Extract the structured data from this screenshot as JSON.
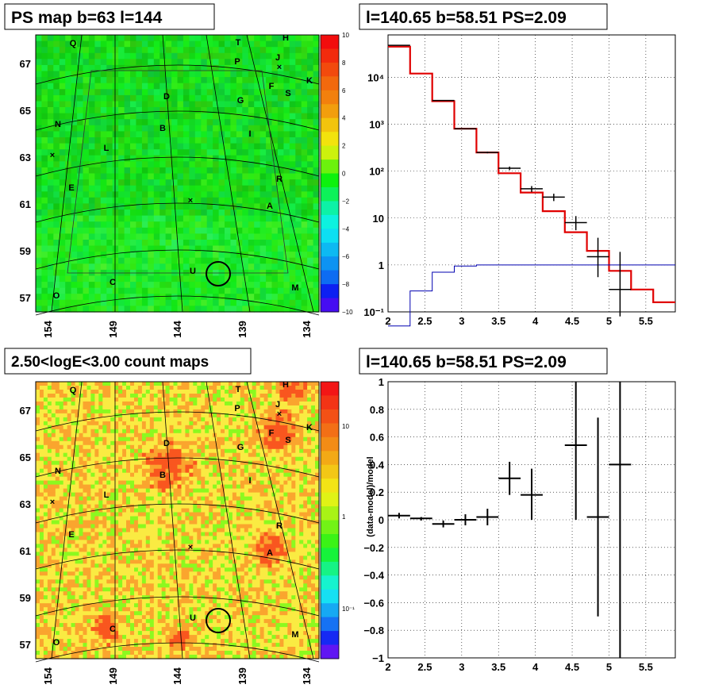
{
  "chart_data": [
    {
      "type": "heatmap",
      "title": "PS map b=63 l=144",
      "x_ticks": [
        "154",
        "149",
        "144",
        "139",
        "134"
      ],
      "y_ticks": [
        "67",
        "65",
        "63",
        "61",
        "59",
        "57"
      ],
      "colorbar": {
        "ticks": [
          "10",
          "8",
          "6",
          "4",
          "2",
          "0",
          "−2",
          "−4",
          "−6",
          "−8",
          "−10"
        ],
        "range": [
          -10,
          10
        ]
      },
      "source_labels": [
        "Q",
        "T",
        "H",
        "P",
        "J",
        "K",
        "F",
        "S",
        "D",
        "G",
        "N",
        "B",
        "I",
        "L",
        "E",
        "R",
        "A",
        "U",
        "C",
        "O",
        "M"
      ]
    },
    {
      "type": "line",
      "title": "l=140.65 b=58.51 PS=2.09",
      "log_y": true,
      "xlim": [
        2,
        5.9
      ],
      "ylim": [
        0.1,
        80000
      ],
      "x_ticks": [
        "2",
        "2.5",
        "3",
        "3.5",
        "4",
        "4.5",
        "5",
        "5.5"
      ],
      "y_ticks": [
        {
          "v": 0.1,
          "t": "10⁻¹"
        },
        {
          "v": 1,
          "t": "1"
        },
        {
          "v": 10,
          "t": "10"
        },
        {
          "v": 100,
          "t": "10²"
        },
        {
          "v": 1000,
          "t": "10³"
        },
        {
          "v": 10000,
          "t": "10⁴"
        }
      ],
      "series": [
        {
          "style": "step-red",
          "edges": [
            2,
            2.3,
            2.6,
            2.9,
            3.2,
            3.5,
            3.8,
            4.1,
            4.4,
            4.7,
            5.0,
            5.3,
            5.6,
            5.9
          ],
          "values": [
            45000,
            12000,
            3100,
            800,
            250,
            90,
            35,
            14,
            5,
            2,
            0.75,
            0.3,
            0.16
          ]
        },
        {
          "style": "step-blue",
          "edges": [
            2,
            2.3,
            2.6,
            2.9,
            3.2,
            3.5,
            3.8,
            4.1,
            4.4,
            4.7,
            5.0,
            5.3,
            5.6,
            5.9
          ],
          "values": [
            0.05,
            0.28,
            0.7,
            0.95,
            1.0,
            1.0,
            1.0,
            1.0,
            1.0,
            1.0,
            1.0,
            1.0,
            1.0
          ]
        },
        {
          "style": "points",
          "x": [
            2.15,
            2.75,
            3.05,
            3.35,
            3.65,
            3.95,
            4.25,
            4.55,
            4.85,
            5.15
          ],
          "xerr": 0.15,
          "y": [
            48000,
            3200,
            800,
            250,
            115,
            42,
            28,
            8,
            1.5,
            0.3
          ],
          "ylo": [
            47500,
            3150,
            790,
            240,
            105,
            36,
            23,
            5.5,
            0.55,
            0.08
          ],
          "yhi": [
            48500,
            3250,
            810,
            260,
            125,
            48,
            33,
            11,
            3.8,
            1.9
          ]
        }
      ]
    },
    {
      "type": "heatmap",
      "title": "2.50<logE<3.00 count maps",
      "x_ticks": [
        "154",
        "149",
        "144",
        "139",
        "134"
      ],
      "y_ticks": [
        "67",
        "65",
        "63",
        "61",
        "59",
        "57"
      ],
      "colorbar": {
        "ticks": [
          "10",
          "1",
          "10⁻¹"
        ],
        "log": true
      },
      "source_labels": [
        "Q",
        "T",
        "H",
        "P",
        "J",
        "K",
        "F",
        "S",
        "D",
        "G",
        "N",
        "B",
        "I",
        "L",
        "E",
        "R",
        "A",
        "U",
        "C",
        "O",
        "M"
      ]
    },
    {
      "type": "scatter",
      "title": "l=140.65 b=58.51 PS=2.09",
      "ylabel": "(data-model)/model",
      "xlim": [
        2,
        5.9
      ],
      "ylim": [
        -1,
        1
      ],
      "x_ticks": [
        "2",
        "2.5",
        "3",
        "3.5",
        "4",
        "4.5",
        "5",
        "5.5"
      ],
      "y_ticks": [
        "1",
        "0.8",
        "0.6",
        "0.4",
        "0.2",
        "0",
        "−0.2",
        "−0.4",
        "−0.6",
        "−0.8",
        "−1"
      ],
      "points": {
        "x": [
          2.15,
          2.45,
          2.75,
          3.05,
          3.35,
          3.65,
          3.95,
          4.55,
          4.85,
          5.15
        ],
        "xerr": 0.15,
        "y": [
          0.03,
          0.01,
          -0.03,
          0.0,
          0.02,
          0.3,
          0.18,
          0.54,
          0.02,
          0.4
        ],
        "ylo": [
          0.01,
          -0.005,
          -0.055,
          -0.04,
          -0.04,
          0.18,
          0.0,
          0.0,
          -0.7,
          -1.0
        ],
        "yhi": [
          0.05,
          0.02,
          -0.005,
          0.04,
          0.08,
          0.42,
          0.37,
          1.0,
          0.74,
          1.0
        ]
      }
    }
  ]
}
